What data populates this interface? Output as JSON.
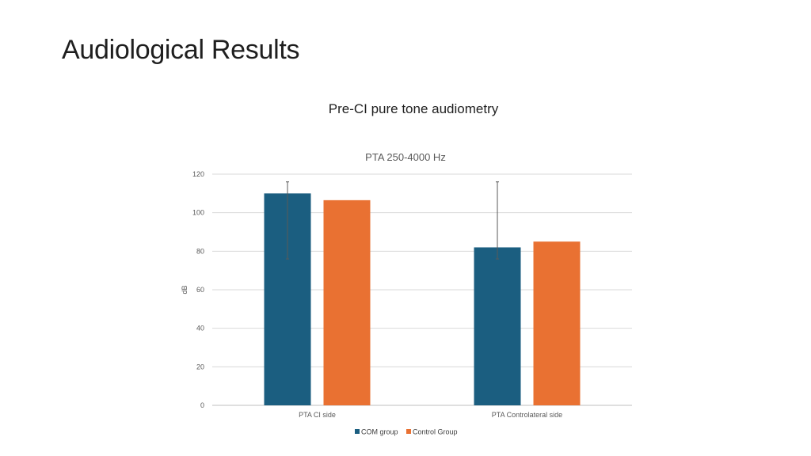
{
  "slide": {
    "title": "Audiological Results",
    "subtitle": "Pre-CI pure tone audiometry"
  },
  "chart_data": {
    "type": "bar",
    "title": "PTA 250-4000 Hz",
    "xlabel": "",
    "ylabel": "dB",
    "ylim": [
      0,
      120
    ],
    "yticks": [
      0,
      20,
      40,
      60,
      80,
      100,
      120
    ],
    "grid": true,
    "legend_position": "bottom",
    "categories": [
      "PTA CI side",
      "PTA Controlateral side"
    ],
    "series": [
      {
        "name": "COM group",
        "color": "#1b5e80",
        "values": [
          110,
          82
        ],
        "error_low": [
          76,
          76
        ],
        "error_high": [
          116,
          116
        ]
      },
      {
        "name": "Control Group",
        "color": "#e97132",
        "values": [
          106.5,
          85
        ]
      }
    ]
  }
}
